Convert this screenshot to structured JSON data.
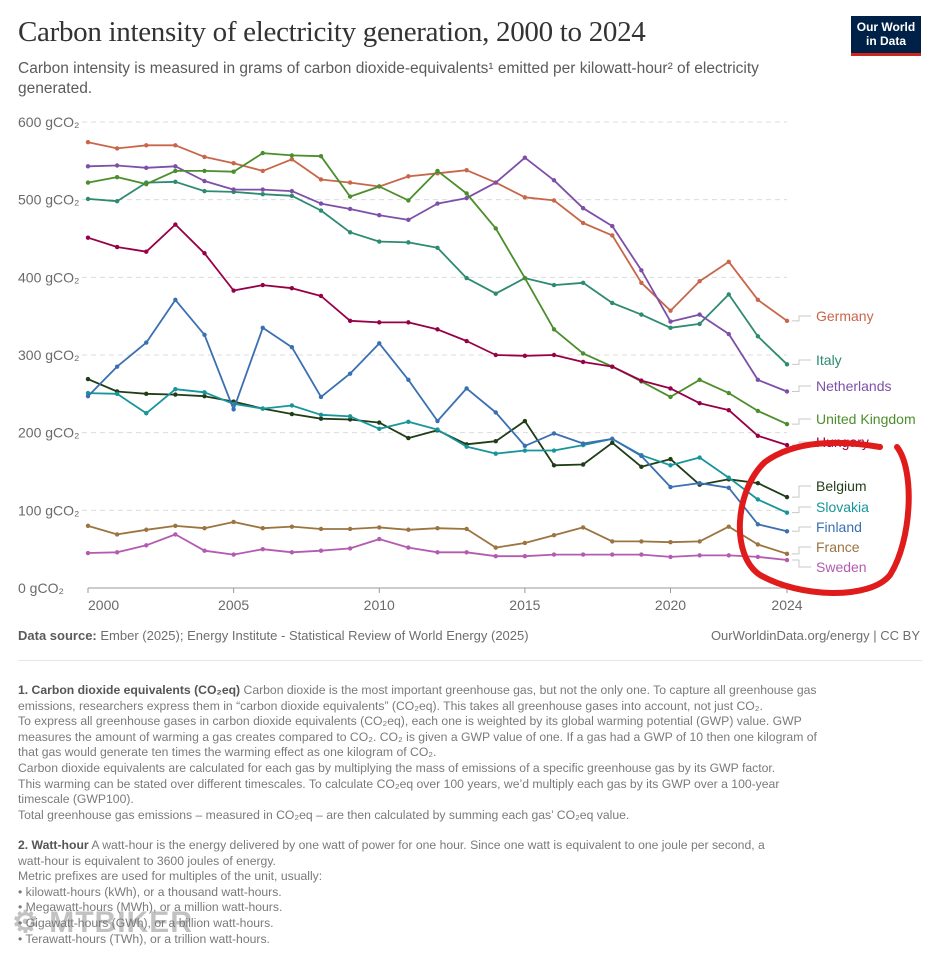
{
  "header": {
    "title": "Carbon intensity of electricity generation, 2000 to 2024",
    "subtitle": "Carbon intensity is measured in grams of carbon dioxide-equivalents¹ emitted per kilowatt-hour² of electricity generated.",
    "logo_text": "Our World in Data"
  },
  "chart_data": {
    "type": "line",
    "title": "Carbon intensity of electricity generation, 2000 to 2024",
    "ylim": [
      0,
      600
    ],
    "y_ticks": [
      "0 gCO₂",
      "100 gCO₂",
      "200 gCO₂",
      "300 gCO₂",
      "400 gCO₂",
      "500 gCO₂",
      "600 gCO₂"
    ],
    "y_tick_values": [
      0,
      100,
      200,
      300,
      400,
      500,
      600
    ],
    "x_ticks": [
      "2000",
      "2005",
      "2010",
      "2015",
      "2020",
      "2024"
    ],
    "x_tick_values": [
      2000,
      2005,
      2010,
      2015,
      2020,
      2024
    ],
    "grid": "horizontal dashed",
    "legend": "right, inline labels",
    "x": [
      2000,
      2001,
      2002,
      2003,
      2004,
      2005,
      2006,
      2007,
      2008,
      2009,
      2010,
      2011,
      2012,
      2013,
      2014,
      2015,
      2016,
      2017,
      2018,
      2019,
      2020,
      2021,
      2022,
      2023,
      2024
    ],
    "series": [
      {
        "name": "Germany",
        "color": "#c8664a",
        "values": [
          574,
          566,
          570,
          570,
          555,
          547,
          537,
          552,
          526,
          522,
          517,
          530,
          534,
          538,
          522,
          503,
          499,
          470,
          454,
          393,
          357,
          395,
          420,
          371,
          344
        ]
      },
      {
        "name": "Italy",
        "color": "#2e8a71",
        "values": [
          501,
          498,
          522,
          523,
          511,
          510,
          507,
          505,
          486,
          458,
          446,
          445,
          438,
          399,
          379,
          399,
          390,
          393,
          367,
          352,
          335,
          340,
          378,
          324,
          288
        ]
      },
      {
        "name": "Netherlands",
        "color": "#7d4fa8",
        "values": [
          543,
          544,
          541,
          543,
          524,
          513,
          513,
          511,
          495,
          488,
          480,
          474,
          495,
          502,
          522,
          554,
          525,
          489,
          466,
          409,
          343,
          352,
          327,
          268,
          253
        ]
      },
      {
        "name": "United Kingdom",
        "color": "#4c8e2b",
        "values": [
          522,
          529,
          520,
          537,
          537,
          536,
          560,
          557,
          556,
          504,
          517,
          499,
          537,
          508,
          463,
          399,
          333,
          302,
          285,
          266,
          246,
          268,
          251,
          228,
          211
        ]
      },
      {
        "name": "Hungary",
        "color": "#970046",
        "values": [
          451,
          439,
          433,
          468,
          431,
          383,
          390,
          386,
          376,
          344,
          342,
          342,
          333,
          318,
          300,
          299,
          300,
          291,
          285,
          267,
          257,
          238,
          229,
          196,
          184
        ]
      },
      {
        "name": "Belgium",
        "color": "#1f3d17",
        "values": [
          269,
          253,
          250,
          249,
          247,
          240,
          231,
          224,
          218,
          217,
          213,
          193,
          203,
          185,
          189,
          215,
          158,
          159,
          187,
          156,
          166,
          133,
          140,
          135,
          117
        ]
      },
      {
        "name": "Slovakia",
        "color": "#17959b",
        "values": [
          251,
          250,
          225,
          256,
          252,
          237,
          231,
          235,
          223,
          221,
          205,
          214,
          204,
          182,
          173,
          177,
          177,
          184,
          192,
          171,
          158,
          168,
          142,
          114,
          97
        ]
      },
      {
        "name": "Finland",
        "color": "#3a70b2",
        "values": [
          247,
          285,
          316,
          371,
          326,
          230,
          335,
          310,
          246,
          276,
          315,
          268,
          215,
          257,
          226,
          183,
          199,
          186,
          192,
          170,
          130,
          135,
          129,
          82,
          73
        ]
      },
      {
        "name": "France",
        "color": "#9b7440",
        "values": [
          80,
          69,
          75,
          80,
          77,
          85,
          77,
          79,
          76,
          76,
          78,
          75,
          77,
          76,
          52,
          58,
          68,
          78,
          60,
          60,
          59,
          60,
          79,
          56,
          44
        ]
      },
      {
        "name": "Sweden",
        "color": "#b35bb0",
        "values": [
          45,
          46,
          55,
          69,
          48,
          43,
          50,
          46,
          48,
          51,
          63,
          52,
          46,
          46,
          41,
          41,
          43,
          43,
          43,
          43,
          40,
          42,
          42,
          40,
          36
        ]
      }
    ],
    "annotation_color": "#e01b1b"
  },
  "footer": {
    "source_label": "Data source:",
    "source_text": " Ember (2025); Energy Institute - Statistical Review of World Energy (2025)",
    "credit": "OurWorldinData.org/energy | CC BY"
  },
  "notes": {
    "note1_title": "1. Carbon dioxide equivalents (CO₂eq)",
    "note1_lines": [
      " Carbon dioxide is the most important greenhouse gas, but not the only one. To capture all greenhouse gas",
      "emissions, researchers express them in “carbon dioxide equivalents” (CO₂eq). This takes all greenhouse gases into account, not just CO₂.",
      "To express all greenhouse gases in carbon dioxide equivalents (CO₂eq), each one is weighted by its global warming potential (GWP) value. GWP",
      "measures the amount of warming a gas creates compared to CO₂. CO₂ is given a GWP value of one. If a gas had a GWP of 10 then one kilogram of",
      "that gas would generate ten times the warming effect as one kilogram of CO₂.",
      "Carbon dioxide equivalents are calculated for each gas by multiplying the mass of emissions of a specific greenhouse gas by its GWP factor.",
      "This warming can be stated over different timescales. To calculate CO₂eq over 100 years, we’d multiply each gas by its GWP over a 100-year",
      "timescale (GWP100).",
      "Total greenhouse gas emissions – measured in CO₂eq – are then calculated by summing each gas’ CO₂eq value."
    ],
    "note2_title": "2. Watt-hour",
    "note2_lines": [
      " A watt-hour is the energy delivered by one watt of power for one hour. Since one watt is equivalent to one joule per second, a",
      "watt-hour is equivalent to 3600 joules of energy.",
      "Metric prefixes are used for multiples of the unit, usually:",
      "• kilowatt-hours (kWh), or a thousand watt-hours.",
      "• Megawatt-hours (MWh), or a million watt-hours.",
      "• Gigawatt-hours (GWh), or a billion watt-hours.",
      "• Terawatt-hours (TWh), or a trillion watt-hours."
    ]
  },
  "watermark": "MTBIKER"
}
